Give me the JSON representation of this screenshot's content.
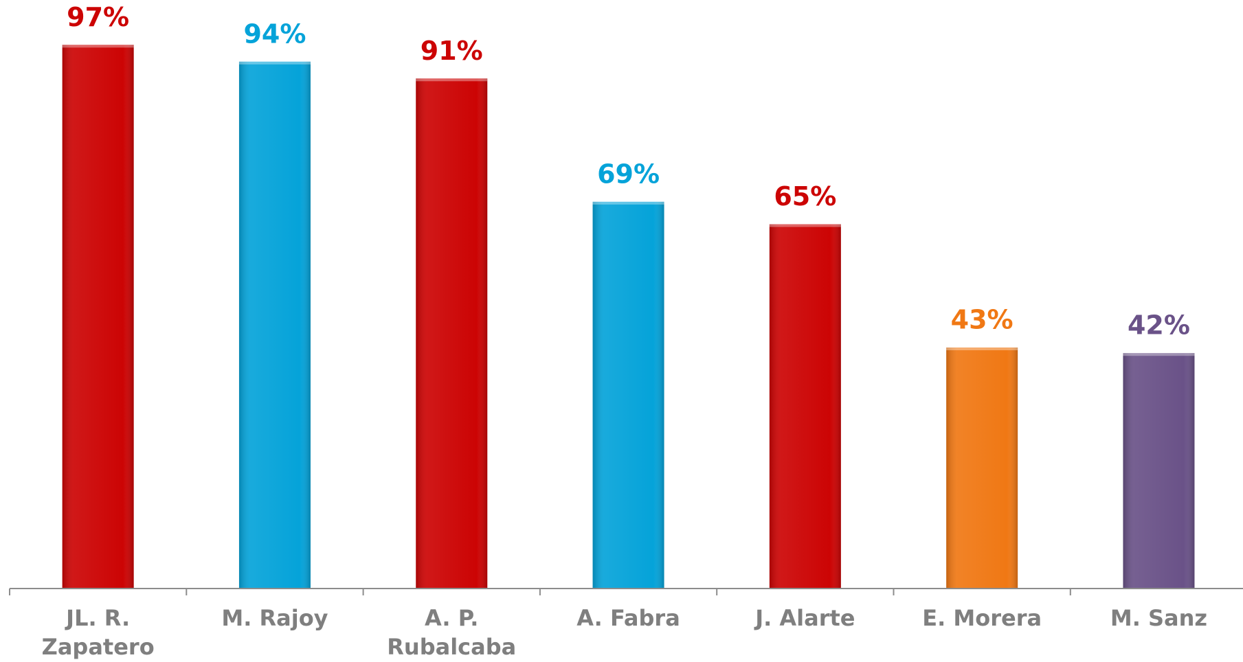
{
  "chart_data": {
    "type": "bar",
    "categories": [
      [
        "JL. R.",
        "Zapatero"
      ],
      [
        "M. Rajoy"
      ],
      [
        "A. P.",
        "Rubalcaba"
      ],
      [
        "A. Fabra"
      ],
      [
        "J. Alarte"
      ],
      [
        "E. Morera"
      ],
      [
        "M. Sanz"
      ]
    ],
    "values": [
      97,
      94,
      91,
      69,
      65,
      43,
      42
    ],
    "value_labels": [
      "97%",
      "94%",
      "91%",
      "69%",
      "65%",
      "43%",
      "42%"
    ],
    "colors": [
      "#cc0404",
      "#05a3d9",
      "#cc0404",
      "#05a3d9",
      "#cc0404",
      "#f07814",
      "#6a5288"
    ],
    "ylim": [
      0,
      105
    ]
  }
}
